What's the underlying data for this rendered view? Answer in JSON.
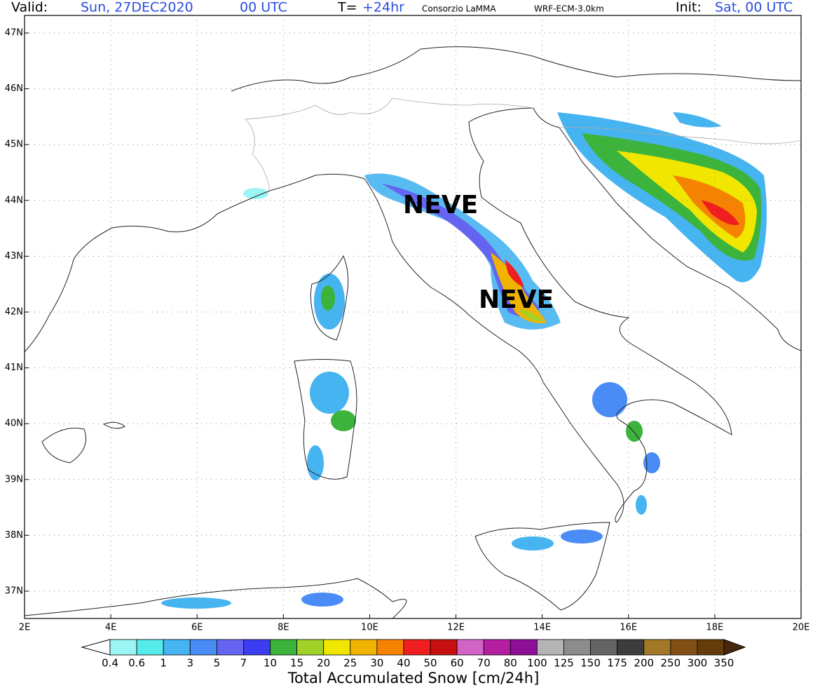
{
  "header": {
    "valid_label": "Valid:",
    "valid_date": "Sun, 27DEC2020",
    "valid_hour": "00 UTC",
    "lead_label": "T=",
    "lead_time": "+24hr",
    "institution": "Consorzio LaMMA",
    "model": "WRF-ECM-3.0km",
    "init_label": "Init:",
    "init_time": "Sat, 00 UTC"
  },
  "map": {
    "lat_labels": [
      "47N",
      "46N",
      "45N",
      "44N",
      "43N",
      "42N",
      "41N",
      "40N",
      "39N",
      "38N",
      "37N"
    ],
    "lon_labels": [
      "2E",
      "4E",
      "6E",
      "8E",
      "10E",
      "12E",
      "14E",
      "16E",
      "18E",
      "20E"
    ],
    "annotations": [
      "NEVE",
      "NEVE"
    ]
  },
  "colorbar": {
    "levels": [
      "0.4",
      "0.6",
      "1",
      "3",
      "5",
      "7",
      "10",
      "15",
      "20",
      "25",
      "30",
      "40",
      "50",
      "60",
      "70",
      "80",
      "100",
      "125",
      "150",
      "175",
      "200",
      "250",
      "300",
      "350"
    ],
    "colors": [
      "#9bf5f5",
      "#55ebeb",
      "#46b4f0",
      "#4a8cf5",
      "#6464f0",
      "#3c3cf0",
      "#3cb43c",
      "#a0d228",
      "#f0e600",
      "#f0b400",
      "#f58200",
      "#f01e1e",
      "#c80f0f",
      "#d264c8",
      "#b41ea0",
      "#8c0f96",
      "#b4b4b4",
      "#8c8c8c",
      "#646464",
      "#3c3c3c",
      "#a07828",
      "#825014",
      "#643c0a"
    ],
    "under_color": "#ffffff",
    "over_color": "#46280a",
    "title": "Total Accumulated Snow [cm/24h]"
  }
}
